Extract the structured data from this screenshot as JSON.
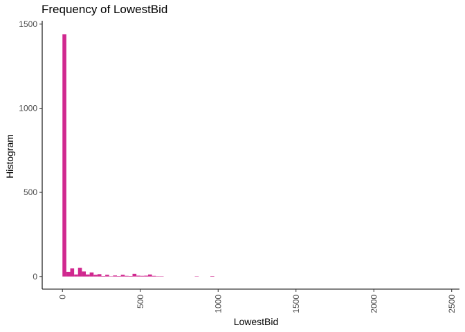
{
  "chart_data": {
    "type": "bar",
    "title": "Frequency of LowestBid",
    "xlabel": "LowestBid",
    "ylabel": "Histogram",
    "bar_color": "#d0288f",
    "xlim": [
      -130,
      2550
    ],
    "ylim": [
      -75,
      1520
    ],
    "x_ticks": [
      "0",
      "500",
      "1000",
      "1500",
      "2000",
      "2500"
    ],
    "y_ticks": [
      "0",
      "500",
      "1000",
      "1500"
    ],
    "bin_width": 25,
    "bins": [
      {
        "x": 0,
        "count": 1440
      },
      {
        "x": 25,
        "count": 28
      },
      {
        "x": 50,
        "count": 48
      },
      {
        "x": 75,
        "count": 12
      },
      {
        "x": 100,
        "count": 52
      },
      {
        "x": 125,
        "count": 30
      },
      {
        "x": 150,
        "count": 12
      },
      {
        "x": 175,
        "count": 24
      },
      {
        "x": 200,
        "count": 10
      },
      {
        "x": 225,
        "count": 14
      },
      {
        "x": 250,
        "count": 3
      },
      {
        "x": 275,
        "count": 10
      },
      {
        "x": 300,
        "count": 2
      },
      {
        "x": 325,
        "count": 6
      },
      {
        "x": 350,
        "count": 3
      },
      {
        "x": 375,
        "count": 10
      },
      {
        "x": 400,
        "count": 4
      },
      {
        "x": 425,
        "count": 3
      },
      {
        "x": 450,
        "count": 16
      },
      {
        "x": 475,
        "count": 5
      },
      {
        "x": 500,
        "count": 4
      },
      {
        "x": 525,
        "count": 5
      },
      {
        "x": 550,
        "count": 12
      },
      {
        "x": 575,
        "count": 4
      },
      {
        "x": 600,
        "count": 2
      },
      {
        "x": 625,
        "count": 2
      },
      {
        "x": 850,
        "count": 2
      },
      {
        "x": 950,
        "count": 3
      }
    ],
    "grid": false,
    "legend": "none"
  }
}
